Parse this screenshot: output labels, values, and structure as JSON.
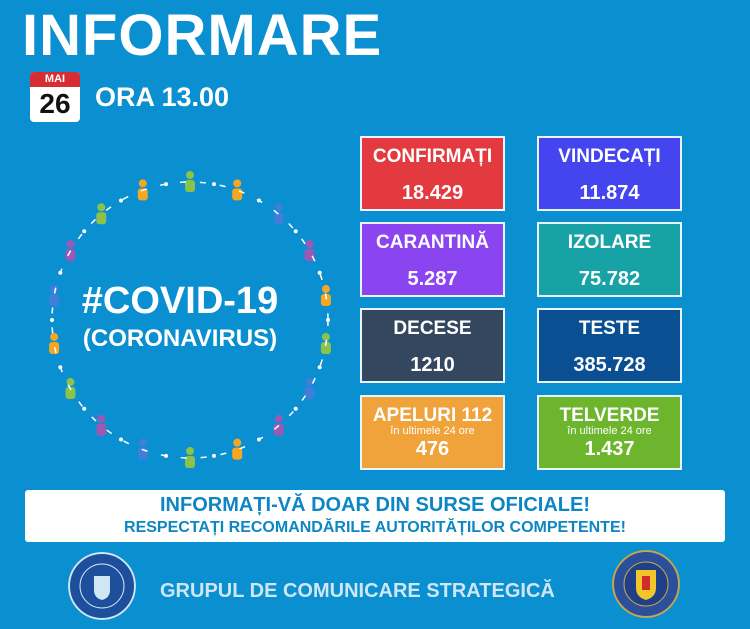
{
  "header": {
    "title": "INFORMARE",
    "month": "MAI",
    "day": "26",
    "hour": "ORA 13.00"
  },
  "center": {
    "hashtag": "#COVID-19",
    "subtitle": "(CORONAVIRUS)"
  },
  "stats": [
    {
      "label": "CONFIRMAȚI",
      "value": "18.429",
      "color": "#e23a3f"
    },
    {
      "label": "VINDECAȚI",
      "value": "11.874",
      "color": "#4545f0"
    },
    {
      "label": "CARANTINĂ",
      "value": "5.287",
      "color": "#8a44f0"
    },
    {
      "label": "IZOLARE",
      "value": "75.782",
      "color": "#17a3a6"
    },
    {
      "label": "DECESE",
      "value": "1210",
      "color": "#33485f"
    },
    {
      "label": "TESTE",
      "value": "385.728",
      "color": "#0b4f93"
    },
    {
      "label": "APELURI 112",
      "sub": "în ultimele 24 ore",
      "value": "476",
      "color": "#f0a33a"
    },
    {
      "label": "TELVERDE",
      "sub": "în ultimele 24 ore",
      "value": "1.437",
      "color": "#6cb52d"
    }
  ],
  "banner": {
    "line1": "INFORMAȚI-VĂ DOAR DIN SURSE OFICIALE!",
    "line2": "RESPECTAȚI RECOMANDĂRILE AUTORITĂȚILOR COMPETENTE!"
  },
  "footer": {
    "text": "GRUPUL DE COMUNICARE STRATEGICĂ",
    "left_logo": "GUVERNUL ROMÂNIEI",
    "right_logo": "DEPARTAMENTUL PENTRU SITUAȚII DE URGENȚĂ · M.A.I."
  }
}
